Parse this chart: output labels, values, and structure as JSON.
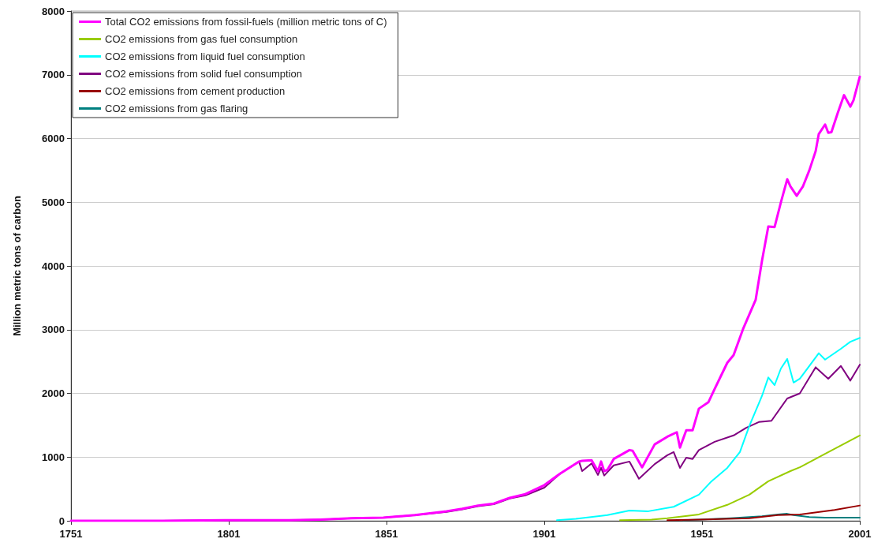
{
  "chart_data": {
    "type": "line",
    "ylabel": "Million metric tons of carbon",
    "xlim": [
      1751,
      2001
    ],
    "xticks": [
      1751,
      1801,
      1851,
      1901,
      1951,
      2001
    ],
    "ylim": [
      0,
      8000
    ],
    "yticks": [
      0,
      1000,
      2000,
      3000,
      4000,
      5000,
      6000,
      7000,
      8000
    ],
    "grid": "y",
    "legend": "top left",
    "marker": "none",
    "line_style": "solid",
    "series": [
      {
        "name": "Total CO2 emissions from fossil-fuels (million metric tons of C)",
        "color": "#ff00ff",
        "x": [
          1751,
          1780,
          1800,
          1820,
          1830,
          1840,
          1850,
          1860,
          1870,
          1875,
          1880,
          1885,
          1890,
          1895,
          1901,
          1906,
          1912,
          1913,
          1916,
          1918,
          1919,
          1920,
          1921,
          1923,
          1928,
          1929,
          1932,
          1936,
          1940,
          1943,
          1944,
          1946,
          1948,
          1950,
          1953,
          1955,
          1959,
          1961,
          1964,
          1968,
          1970,
          1972,
          1974,
          1976,
          1978,
          1979,
          1981,
          1983,
          1985,
          1987,
          1988,
          1990,
          1991,
          1992,
          1994,
          1996,
          1998,
          1999,
          2001
        ],
        "values": [
          0,
          0,
          10,
          10,
          20,
          40,
          50,
          90,
          150,
          190,
          240,
          270,
          360,
          420,
          560,
          740,
          930,
          940,
          950,
          780,
          930,
          780,
          800,
          970,
          1110,
          1100,
          840,
          1200,
          1320,
          1390,
          1150,
          1420,
          1420,
          1760,
          1860,
          2070,
          2480,
          2600,
          3010,
          3470,
          4080,
          4620,
          4610,
          5000,
          5360,
          5250,
          5100,
          5250,
          5500,
          5800,
          6070,
          6220,
          6090,
          6100,
          6400,
          6680,
          6500,
          6600,
          6970
        ]
      },
      {
        "name": "CO2 emissions from gas fuel consumption",
        "color": "#99cc00",
        "x": [
          1925,
          1935,
          1940,
          1950,
          1959,
          1966,
          1972,
          1979,
          1982,
          1990,
          2001
        ],
        "values": [
          10,
          20,
          40,
          100,
          250,
          410,
          620,
          780,
          840,
          1050,
          1340
        ]
      },
      {
        "name": "CO2 emissions from liquid fuel consumption",
        "color": "#00ffff",
        "x": [
          1905,
          1911,
          1921,
          1928,
          1934,
          1942,
          1950,
          1954,
          1959,
          1963,
          1966,
          1970,
          1972,
          1974,
          1976,
          1978,
          1980,
          1982,
          1988,
          1990,
          1995,
          1998,
          2001
        ],
        "values": [
          10,
          30,
          90,
          160,
          150,
          220,
          410,
          620,
          830,
          1080,
          1490,
          1960,
          2250,
          2130,
          2390,
          2540,
          2170,
          2230,
          2630,
          2530,
          2700,
          2810,
          2870
        ]
      },
      {
        "name": "CO2 emissions from solid fuel consumption",
        "color": "#800080",
        "x": [
          1751,
          1780,
          1800,
          1820,
          1830,
          1840,
          1850,
          1860,
          1870,
          1875,
          1880,
          1885,
          1890,
          1895,
          1901,
          1906,
          1912,
          1913,
          1916,
          1918,
          1919,
          1920,
          1923,
          1928,
          1931,
          1936,
          1940,
          1942,
          1944,
          1946,
          1948,
          1950,
          1955,
          1961,
          1965,
          1969,
          1973,
          1978,
          1982,
          1987,
          1991,
          1995,
          1998,
          2001
        ],
        "values": [
          0,
          0,
          10,
          10,
          20,
          40,
          50,
          90,
          140,
          180,
          230,
          260,
          350,
          400,
          520,
          740,
          930,
          780,
          900,
          720,
          830,
          710,
          870,
          930,
          660,
          890,
          1030,
          1080,
          830,
          990,
          970,
          1110,
          1240,
          1340,
          1460,
          1550,
          1570,
          1920,
          2000,
          2410,
          2230,
          2430,
          2200,
          2450
        ]
      },
      {
        "name": "CO2 emissions from cement production",
        "color": "#990000",
        "x": [
          1940,
          1950,
          1966,
          1975,
          1982,
          1993,
          2001
        ],
        "values": [
          10,
          20,
          40,
          90,
          100,
          170,
          240
        ]
      },
      {
        "name": "CO2 emissions from gas flaring",
        "color": "#008080",
        "x": [
          1945,
          1950,
          1960,
          1970,
          1975,
          1978,
          1980,
          1985,
          1990,
          2001
        ],
        "values": [
          10,
          20,
          40,
          70,
          100,
          110,
          90,
          60,
          50,
          50
        ]
      }
    ]
  }
}
